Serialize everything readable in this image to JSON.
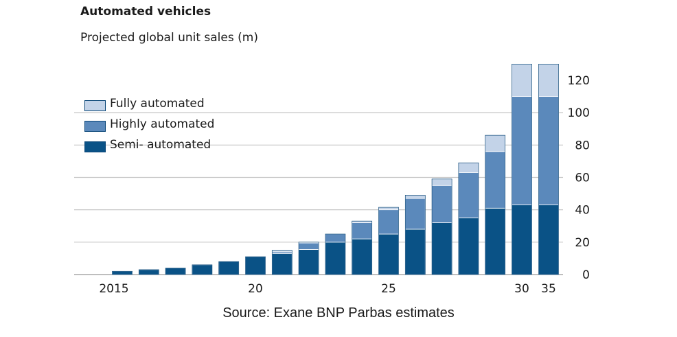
{
  "title": "Automated vehicles",
  "subtitle": "Projected global unit sales (m)",
  "source": "Source: Exane BNP Parbas estimates",
  "chart_data": {
    "type": "bar",
    "stacked": true,
    "x": [
      2015,
      2016,
      2017,
      2018,
      2019,
      2020,
      2021,
      2022,
      2023,
      2024,
      2025,
      2026,
      2027,
      2028,
      2029,
      2030,
      2035
    ],
    "x_tick_labels": [
      {
        "x": 2015,
        "label": "2015"
      },
      {
        "x": 2020,
        "label": "20"
      },
      {
        "x": 2025,
        "label": "25"
      },
      {
        "x": 2030,
        "label": "30"
      },
      {
        "x": 2035,
        "label": "35"
      }
    ],
    "series": [
      {
        "name": "Semi- automated",
        "color": "#0a5286",
        "values": [
          2,
          3,
          4,
          6,
          8,
          11,
          13,
          15.5,
          20,
          22,
          25,
          28,
          32,
          35,
          41,
          43,
          43
        ]
      },
      {
        "name": "Highly automated",
        "color": "#5b89bb",
        "values": [
          0,
          0,
          0,
          0,
          0,
          0,
          1,
          4,
          5,
          10,
          15,
          19,
          23,
          28,
          35,
          67,
          67
        ]
      },
      {
        "name": "Fully automated",
        "color": "#c3d3e8",
        "values": [
          0,
          0,
          0,
          0,
          0,
          0,
          1,
          0.5,
          0,
          1,
          1.5,
          2,
          4,
          6,
          10,
          20,
          20
        ]
      }
    ],
    "y_axis": {
      "position": "right",
      "ticks": [
        0,
        20,
        40,
        60,
        80,
        100,
        120
      ],
      "ylim": [
        0,
        131
      ]
    },
    "grid": true,
    "legend_position": "top-left",
    "legend_order": [
      "Fully automated",
      "Highly automated",
      "Semi- automated"
    ]
  }
}
